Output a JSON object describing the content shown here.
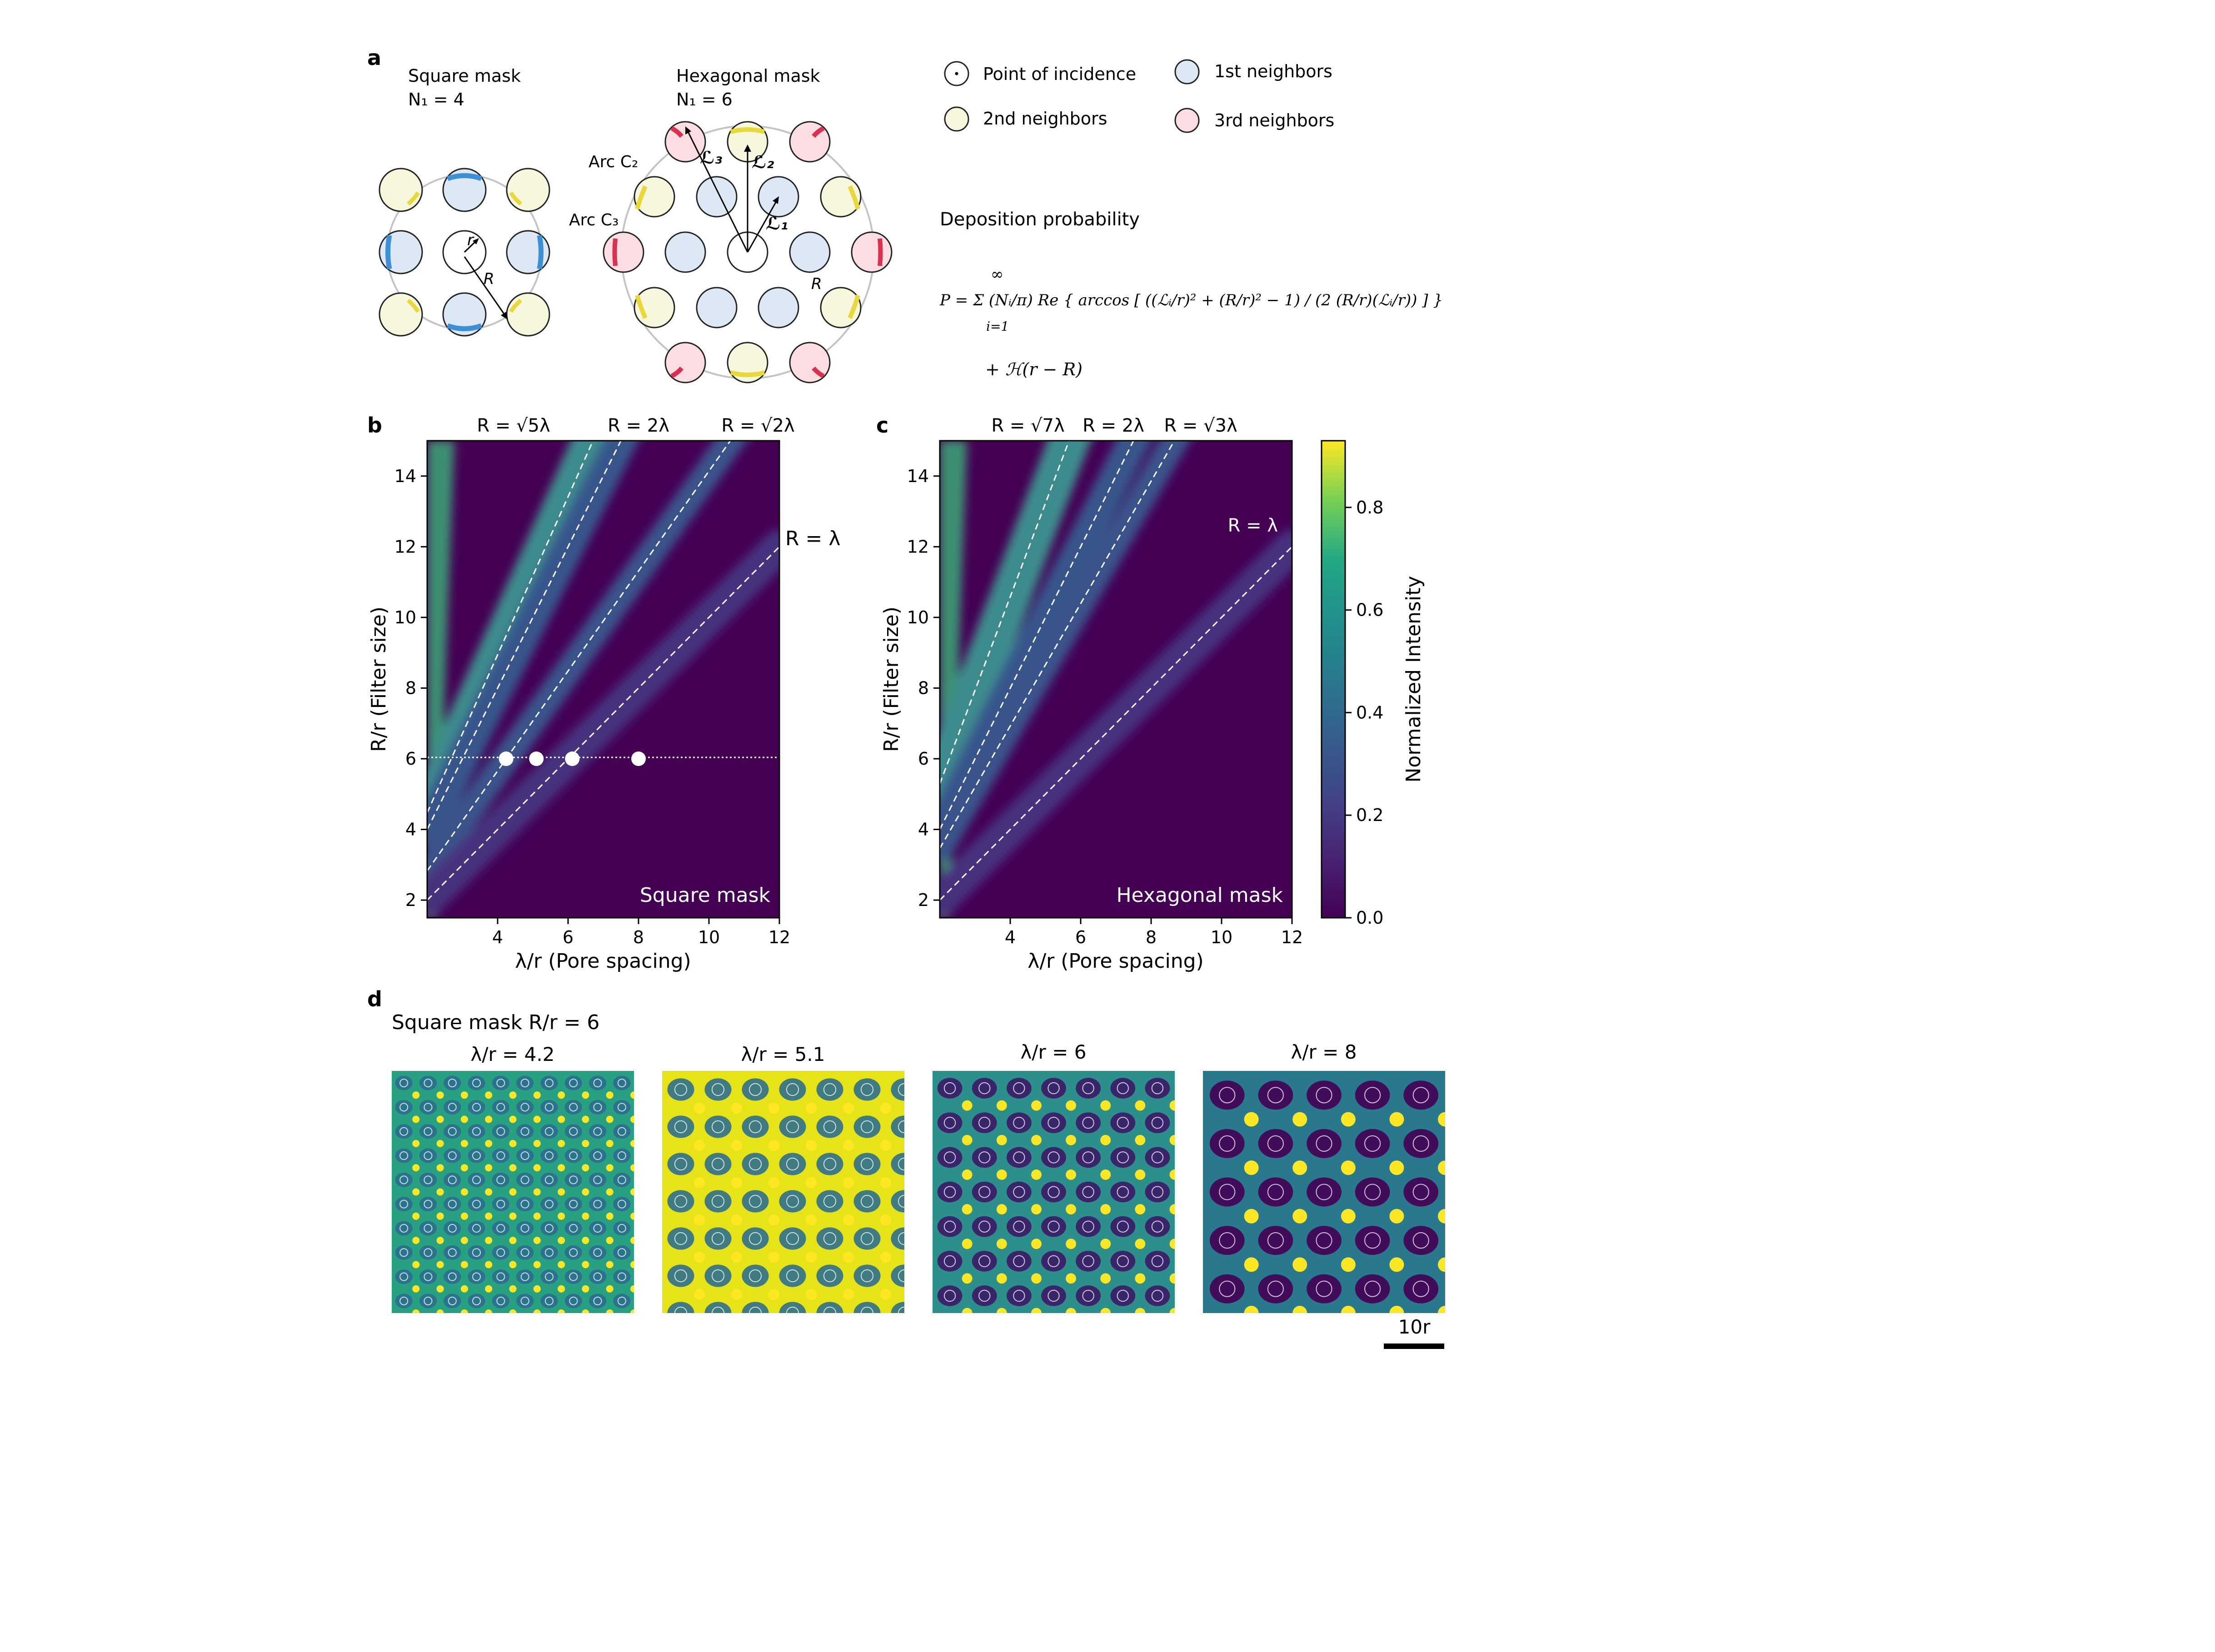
{
  "panel_labels": {
    "a": "a",
    "b": "b",
    "c": "c",
    "d": "d"
  },
  "panel_a": {
    "square_title": "Square mask",
    "square_n": "N₁ = 4",
    "hex_title": "Hexagonal mask",
    "hex_n": "N₁ = 6",
    "sym_r": "r",
    "sym_R": "R",
    "sym_R2": "R",
    "arc_c2": "Arc C₂",
    "arc_c3": "Arc C₃",
    "l1": "ℒ₁",
    "l2": "ℒ₂",
    "l3": "ℒ₃",
    "legend": {
      "incidence": "Point of incidence",
      "first": "1st neighbors",
      "second": "2nd neighbors",
      "third": "3rd neighbors"
    },
    "deposition_title": "Deposition probability",
    "equation_line1": "P = Σ (Nᵢ/π) Re { arccos [ ((ℒᵢ/r)² + (R/r)² − 1) / (2 (R/r)(ℒᵢ/r)) ] }",
    "equation_sum_top": "∞",
    "equation_sum_bottom": "i=1",
    "equation_line2": "+ ℋ(r − R)",
    "colors": {
      "first": "#dce9f5",
      "second": "#f6f7dc",
      "third": "#fbdde2",
      "blue_arc": "#3d8fd6",
      "yellow_arc": "#e8d83a",
      "red_arc": "#d9314f"
    }
  },
  "chart_data": [
    {
      "type": "heatmap",
      "panel": "b",
      "inner_label": "Square mask",
      "xlabel": "λ/r (Pore spacing)",
      "ylabel": "R/r (Filter size)",
      "xlim": [
        2,
        12
      ],
      "ylim": [
        1.5,
        15
      ],
      "xticks": [
        "4",
        "6",
        "8",
        "10",
        "12"
      ],
      "yticks": [
        "2",
        "4",
        "6",
        "8",
        "10",
        "12",
        "14"
      ],
      "lines": [
        "R = √5λ",
        "R = 2λ",
        "R = √2λ",
        "R = λ"
      ],
      "line_slopes": [
        2.236,
        2,
        1.414,
        1
      ],
      "marker_row": 6,
      "markers_x": [
        4.24,
        5.1,
        6.12,
        8.0
      ]
    },
    {
      "type": "heatmap",
      "panel": "c",
      "inner_label": "Hexagonal mask",
      "xlabel": "λ/r (Pore spacing)",
      "ylabel": "R/r (Filter size)",
      "xlim": [
        2,
        12
      ],
      "ylim": [
        1.5,
        15
      ],
      "xticks": [
        "4",
        "6",
        "8",
        "10",
        "12"
      ],
      "yticks": [
        "2",
        "4",
        "6",
        "8",
        "10",
        "12",
        "14"
      ],
      "lines": [
        "R = √7λ",
        "R = 2λ",
        "R = √3λ",
        "R = λ"
      ],
      "line_slopes": [
        2.646,
        2,
        1.732,
        1
      ]
    }
  ],
  "colorbar": {
    "label": "Normalized Intensity",
    "ticks": [
      "0.0",
      "0.2",
      "0.4",
      "0.6",
      "0.8"
    ],
    "range": [
      0,
      0.93
    ]
  },
  "panel_d": {
    "title": "Square mask R/r = 6",
    "maps": [
      {
        "label": "λ/r = 4.2",
        "lambda": 4.2
      },
      {
        "label": "λ/r = 5.1",
        "lambda": 5.1
      },
      {
        "label": "λ/r = 6",
        "lambda": 6
      },
      {
        "label": "λ/r = 8",
        "lambda": 8
      }
    ],
    "scalebar": "10r"
  }
}
